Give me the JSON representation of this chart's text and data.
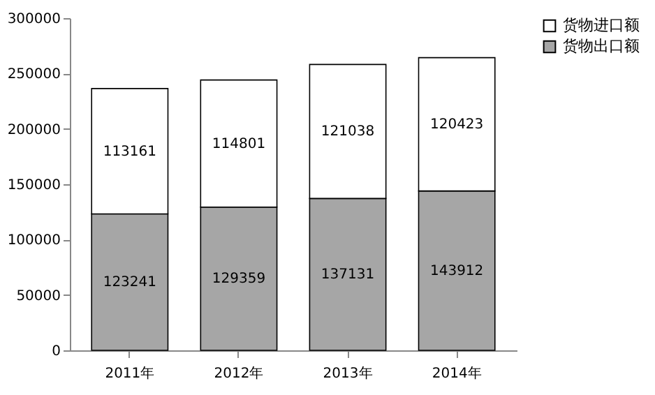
{
  "chart_data": {
    "type": "bar",
    "stacked": true,
    "categories": [
      "2011年",
      "2012年",
      "2013年",
      "2014年"
    ],
    "series": [
      {
        "name": "货物出口额",
        "color": "#a6a6a6",
        "values": [
          123241,
          129359,
          137131,
          143912
        ]
      },
      {
        "name": "货物进口额",
        "color": "#ffffff",
        "values": [
          113161,
          114801,
          121038,
          120423
        ]
      }
    ],
    "ylim": [
      0,
      300000
    ],
    "yticks": [
      0,
      50000,
      100000,
      150000,
      200000,
      250000,
      300000
    ],
    "grid": false,
    "legend": "right",
    "data_labels": true
  }
}
